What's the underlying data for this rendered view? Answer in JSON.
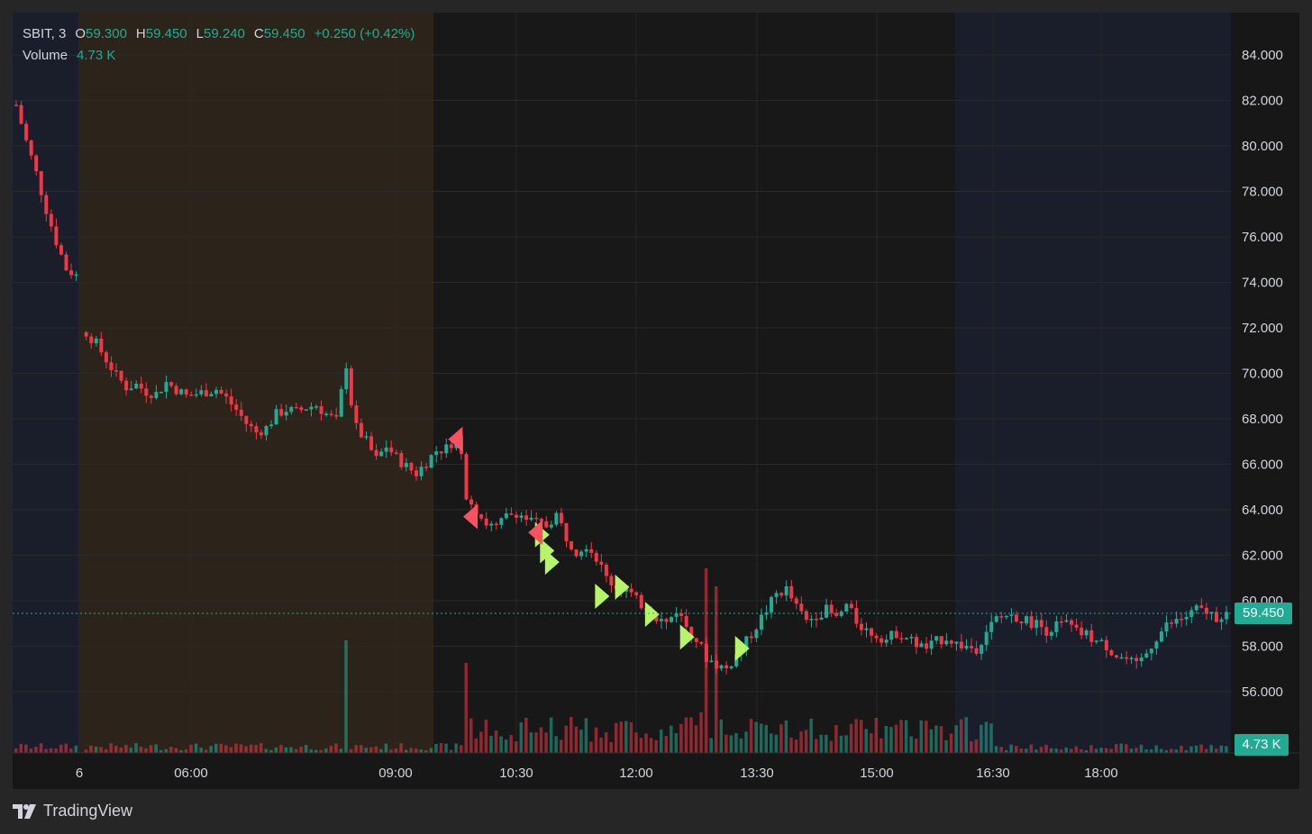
{
  "legend": {
    "symbol": "SBIT, 3",
    "open_label": "O",
    "open": "59.300",
    "high_label": "H",
    "high": "59.450",
    "low_label": "L",
    "low": "59.240",
    "close_label": "C",
    "close": "59.450",
    "change": "+0.250 (+0.42%)",
    "volume_label": "Volume",
    "volume": "4.73 K"
  },
  "price_badge": "59.450",
  "volume_badge": "4.73 K",
  "brand": "TradingView",
  "colors": {
    "up": "#22ab94",
    "down": "#f23645",
    "buy_marker": "#b6f56a",
    "sell_marker": "#f7525f",
    "accent": "#22ab94"
  },
  "chart_data": {
    "type": "candlestick",
    "interval": "3",
    "y_range": [
      54.0,
      86.0
    ],
    "y_ticks": [
      "84.000",
      "82.000",
      "80.000",
      "78.000",
      "76.000",
      "74.000",
      "72.000",
      "70.000",
      "68.000",
      "66.000",
      "64.000",
      "62.000",
      "60.000",
      "58.000",
      "56.000"
    ],
    "x_ticks": [
      "6",
      "06:00",
      "09:00",
      "10:30",
      "12:00",
      "13:30",
      "15:00",
      "16:30",
      "18:00"
    ],
    "current_price": 59.45,
    "sessions": [
      "pre-market",
      "extended",
      "regular",
      "after-hours"
    ],
    "price_path": [
      [
        0,
        81.8
      ],
      [
        2,
        80.2
      ],
      [
        4,
        78.8
      ],
      [
        6,
        77.2
      ],
      [
        8,
        75.8
      ],
      [
        10,
        74.6
      ],
      [
        12,
        74.3
      ],
      [
        14,
        71.8
      ],
      [
        16,
        71.3
      ],
      [
        18,
        70.6
      ],
      [
        20,
        69.9
      ],
      [
        22,
        69.4
      ],
      [
        24,
        69.5
      ],
      [
        26,
        69.2
      ],
      [
        28,
        69.1
      ],
      [
        30,
        69.6
      ],
      [
        32,
        69.3
      ],
      [
        34,
        69.0
      ],
      [
        36,
        69.1
      ],
      [
        38,
        69.2
      ],
      [
        40,
        69.3
      ],
      [
        42,
        68.9
      ],
      [
        44,
        68.4
      ],
      [
        46,
        67.8
      ],
      [
        48,
        67.4
      ],
      [
        50,
        67.6
      ],
      [
        52,
        68.2
      ],
      [
        54,
        68.4
      ],
      [
        56,
        68.3
      ],
      [
        58,
        68.5
      ],
      [
        60,
        68.6
      ],
      [
        62,
        68.2
      ],
      [
        64,
        67.9
      ],
      [
        66,
        70.4
      ],
      [
        67,
        68.7
      ],
      [
        68,
        67.6
      ],
      [
        70,
        67.0
      ],
      [
        72,
        66.2
      ],
      [
        74,
        66.8
      ],
      [
        76,
        66.3
      ],
      [
        78,
        65.9
      ],
      [
        80,
        65.6
      ],
      [
        82,
        66.1
      ],
      [
        84,
        66.6
      ],
      [
        86,
        66.7
      ],
      [
        88,
        67.2
      ],
      [
        89,
        66.4
      ],
      [
        90,
        64.7
      ],
      [
        92,
        64.0
      ],
      [
        94,
        63.4
      ],
      [
        96,
        63.2
      ],
      [
        98,
        63.7
      ],
      [
        100,
        63.9
      ],
      [
        102,
        63.6
      ],
      [
        104,
        63.4
      ],
      [
        106,
        63.3
      ],
      [
        108,
        63.8
      ],
      [
        110,
        62.8
      ],
      [
        112,
        62.2
      ],
      [
        114,
        62.5
      ],
      [
        116,
        61.9
      ],
      [
        118,
        61.0
      ],
      [
        120,
        60.6
      ],
      [
        122,
        60.5
      ],
      [
        124,
        60.0
      ],
      [
        126,
        59.7
      ],
      [
        128,
        59.3
      ],
      [
        130,
        59.0
      ],
      [
        132,
        59.6
      ],
      [
        134,
        58.9
      ],
      [
        136,
        58.3
      ],
      [
        138,
        57.5
      ],
      [
        140,
        57.2
      ],
      [
        142,
        57.0
      ],
      [
        144,
        57.6
      ],
      [
        146,
        58.2
      ],
      [
        148,
        58.9
      ],
      [
        150,
        59.6
      ],
      [
        152,
        60.3
      ],
      [
        154,
        60.5
      ],
      [
        156,
        59.7
      ],
      [
        158,
        59.1
      ],
      [
        160,
        59.4
      ],
      [
        162,
        59.6
      ],
      [
        164,
        59.2
      ],
      [
        166,
        59.8
      ],
      [
        168,
        59.1
      ],
      [
        170,
        58.7
      ],
      [
        172,
        58.5
      ],
      [
        174,
        58.3
      ],
      [
        176,
        58.6
      ],
      [
        178,
        58.4
      ],
      [
        180,
        58.1
      ],
      [
        182,
        57.9
      ],
      [
        184,
        58.2
      ],
      [
        186,
        58.4
      ],
      [
        188,
        58.1
      ],
      [
        190,
        58.0
      ],
      [
        192,
        57.9
      ],
      [
        194,
        58.7
      ],
      [
        196,
        59.2
      ],
      [
        198,
        59.4
      ],
      [
        200,
        59.3
      ],
      [
        202,
        59.1
      ],
      [
        204,
        59.0
      ],
      [
        206,
        58.7
      ],
      [
        208,
        58.9
      ],
      [
        210,
        59.0
      ],
      [
        212,
        58.6
      ],
      [
        214,
        58.5
      ],
      [
        216,
        58.2
      ],
      [
        218,
        58.0
      ],
      [
        220,
        57.6
      ],
      [
        222,
        57.4
      ],
      [
        224,
        57.1
      ],
      [
        226,
        57.7
      ],
      [
        228,
        58.4
      ],
      [
        230,
        58.9
      ],
      [
        232,
        59.1
      ],
      [
        234,
        59.3
      ],
      [
        236,
        59.6
      ],
      [
        238,
        59.5
      ],
      [
        240,
        59.3
      ],
      [
        242,
        59.45
      ]
    ],
    "markers": [
      {
        "type": "sell",
        "bar": 88,
        "price": 67.1
      },
      {
        "type": "sell",
        "bar": 91,
        "price": 63.7
      },
      {
        "type": "buy",
        "bar": 105,
        "price": 62.9
      },
      {
        "type": "buy",
        "bar": 106,
        "price": 62.2
      },
      {
        "type": "buy",
        "bar": 107,
        "price": 61.7
      },
      {
        "type": "sell",
        "bar": 104,
        "price": 63.0
      },
      {
        "type": "buy",
        "bar": 117,
        "price": 60.2
      },
      {
        "type": "buy",
        "bar": 121,
        "price": 60.6
      },
      {
        "type": "buy",
        "bar": 127,
        "price": 59.4
      },
      {
        "type": "buy",
        "bar": 134,
        "price": 58.4
      },
      {
        "type": "buy",
        "bar": 145,
        "price": 57.9
      }
    ]
  }
}
